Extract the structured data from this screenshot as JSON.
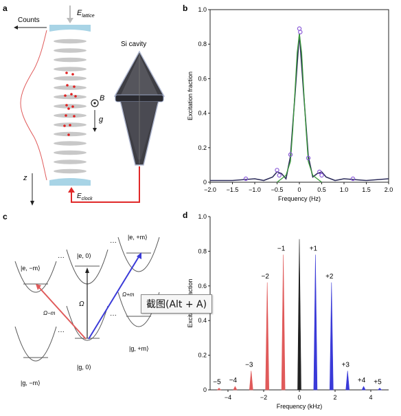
{
  "panel_labels": {
    "a": "a",
    "b": "b",
    "c": "c",
    "d": "d"
  },
  "panel_a": {
    "e_lattice": "E",
    "e_lattice_sub": "lattice",
    "counts": "Counts",
    "si_cavity": "Si cavity",
    "b_field": "B",
    "gravity": "g",
    "z_axis": "z",
    "e_clock": "E",
    "e_clock_sub": "clock"
  },
  "panel_c": {
    "states": {
      "e_minus": "|e, −m⟩",
      "e_zero": "|e, 0⟩",
      "e_plus": "|e, +m⟩",
      "g_minus": "|g, −m⟩",
      "g_zero": "|g, 0⟩",
      "g_plus": "|g, +m⟩"
    },
    "dots": "···",
    "omega": "Ω",
    "omega_minus": "Ω−m",
    "omega_plus": "Ω+m",
    "colors": {
      "red": "#e05a5a",
      "blue": "#3a3ad8"
    }
  },
  "tooltip": {
    "text": "截图(Alt + A)"
  },
  "chart_data": [
    {
      "panel": "b",
      "type": "line",
      "xlabel": "Frequency (Hz)",
      "ylabel": "Excitation fraction",
      "xlim": [
        -2.0,
        2.0
      ],
      "ylim": [
        0,
        1.0
      ],
      "xticks": [
        "−2.0",
        "−1.5",
        "−1.0",
        "−0.5",
        "0",
        "0.5",
        "1.0",
        "1.5",
        "2.0"
      ],
      "xtick_values": [
        -2.0,
        -1.5,
        -1.0,
        -0.5,
        0,
        0.5,
        1.0,
        1.5,
        2.0
      ],
      "yticks": [
        "0",
        "0.2",
        "0.4",
        "0.6",
        "0.8",
        "1.0"
      ],
      "ytick_values": [
        0,
        0.2,
        0.4,
        0.6,
        0.8,
        1.0
      ],
      "series": [
        {
          "values": [
            [
              -2.0,
              0.01
            ],
            [
              -1.5,
              0.01
            ],
            [
              -1.0,
              0.02
            ],
            [
              -0.8,
              0.01
            ],
            [
              -0.6,
              0.03
            ],
            [
              -0.5,
              0.06
            ],
            [
              -0.4,
              0.05
            ],
            [
              -0.3,
              0.02
            ],
            [
              -0.2,
              0.15
            ],
            [
              -0.1,
              0.5
            ],
            [
              0,
              0.86
            ],
            [
              0.1,
              0.5
            ],
            [
              0.2,
              0.15
            ],
            [
              0.3,
              0.03
            ],
            [
              0.4,
              0.05
            ],
            [
              0.5,
              0.06
            ],
            [
              0.6,
              0.03
            ],
            [
              0.8,
              0.01
            ],
            [
              1.0,
              0.02
            ],
            [
              1.5,
              0.01
            ],
            [
              2.0,
              0.02
            ]
          ],
          "color": "#2c2c5a"
        },
        {
          "values": [
            [
              -0.5,
              0.0
            ],
            [
              -0.4,
              0.02
            ],
            [
              -0.3,
              0.04
            ],
            [
              -0.2,
              0.12
            ],
            [
              -0.15,
              0.3
            ],
            [
              -0.1,
              0.52
            ],
            [
              -0.05,
              0.75
            ],
            [
              0,
              0.86
            ],
            [
              0.05,
              0.75
            ],
            [
              0.1,
              0.52
            ],
            [
              0.15,
              0.3
            ],
            [
              0.2,
              0.12
            ],
            [
              0.3,
              0.04
            ],
            [
              0.4,
              0.02
            ],
            [
              0.5,
              0.0
            ]
          ],
          "color": "#3a9a3a"
        }
      ],
      "points": [
        [
          -0.5,
          0.07
        ],
        [
          -0.45,
          0.04
        ],
        [
          0.45,
          0.06
        ],
        [
          0.5,
          0.04
        ],
        [
          0.0,
          0.89
        ],
        [
          0.02,
          0.87
        ],
        [
          -0.2,
          0.16
        ],
        [
          0.2,
          0.14
        ],
        [
          -1.2,
          0.02
        ],
        [
          1.2,
          0.02
        ]
      ],
      "point_color": "#8a5ad8"
    },
    {
      "panel": "d",
      "type": "bar",
      "xlabel": "Frequency (kHz)",
      "ylabel": "Excitation fraction",
      "xlim": [
        -5,
        5
      ],
      "ylim": [
        0,
        1.0
      ],
      "xticks": [
        "−4",
        "−2",
        "0",
        "2",
        "4"
      ],
      "xtick_values": [
        -4,
        -2,
        0,
        2,
        4
      ],
      "yticks": [
        "0",
        "0.2",
        "0.4",
        "0.6",
        "0.8",
        "1.0"
      ],
      "ytick_values": [
        0,
        0.2,
        0.4,
        0.6,
        0.8,
        1.0
      ],
      "peaks": [
        {
          "label": "−5",
          "x": -4.5,
          "value": 0.01,
          "color": "#e05a5a"
        },
        {
          "label": "−4",
          "x": -3.6,
          "value": 0.02,
          "color": "#e05a5a"
        },
        {
          "label": "−3",
          "x": -2.7,
          "value": 0.11,
          "color": "#e05a5a"
        },
        {
          "label": "−2",
          "x": -1.8,
          "value": 0.62,
          "color": "#e05a5a"
        },
        {
          "label": "−1",
          "x": -0.9,
          "value": 0.78,
          "color": "#e05a5a"
        },
        {
          "label": "",
          "x": 0.0,
          "value": 0.87,
          "color": "#222222"
        },
        {
          "label": "+1",
          "x": 0.9,
          "value": 0.78,
          "color": "#3a3ad8"
        },
        {
          "label": "+2",
          "x": 1.8,
          "value": 0.62,
          "color": "#3a3ad8"
        },
        {
          "label": "+3",
          "x": 2.7,
          "value": 0.11,
          "color": "#3a3ad8"
        },
        {
          "label": "+4",
          "x": 3.6,
          "value": 0.02,
          "color": "#3a3ad8"
        },
        {
          "label": "+5",
          "x": 4.5,
          "value": 0.01,
          "color": "#3a3ad8"
        }
      ]
    }
  ]
}
